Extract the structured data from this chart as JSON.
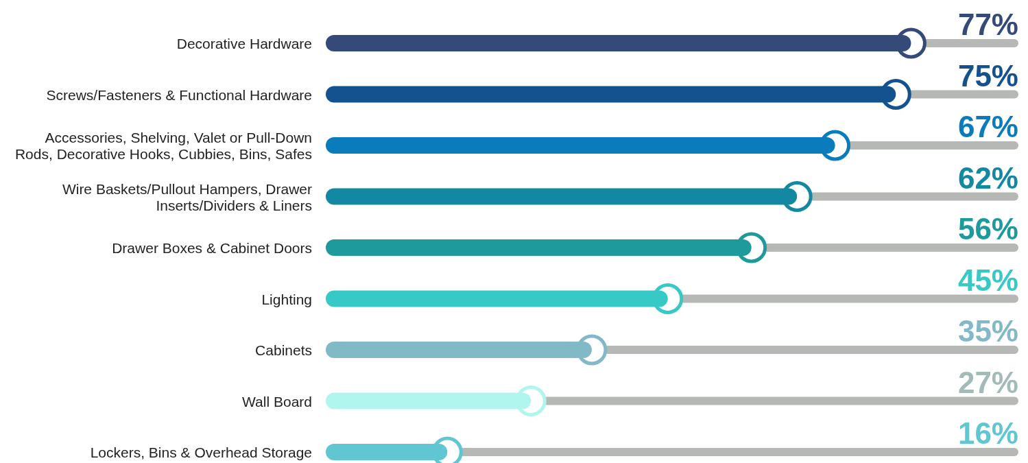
{
  "chart_data": {
    "type": "bar",
    "orientation": "horizontal",
    "categories": [
      "Decorative Hardware",
      "Screws/Fasteners & Functional Hardware",
      "Accessories, Shelving, Valet or Pull-Down Rods, Decorative Hooks, Cubbies, Bins, Safes",
      "Wire Baskets/Pullout Hampers, Drawer Inserts/Dividers & Liners",
      "Drawer Boxes & Cabinet Doors",
      "Lighting",
      "Cabinets",
      "Wall Board",
      "Lockers, Bins & Overhead Storage"
    ],
    "values": [
      77,
      75,
      67,
      62,
      56,
      45,
      35,
      27,
      16
    ],
    "colors": [
      "#364a7a",
      "#14528f",
      "#0a7cbb",
      "#1388a3",
      "#1e9a9c",
      "#36c9c6",
      "#82b9c6",
      "#b0f5ee",
      "#5fc6d2"
    ],
    "value_labels": [
      "77%",
      "75%",
      "67%",
      "62%",
      "56%",
      "45%",
      "35%",
      "27%",
      "16%"
    ],
    "tick_labels": "y"
  }
}
